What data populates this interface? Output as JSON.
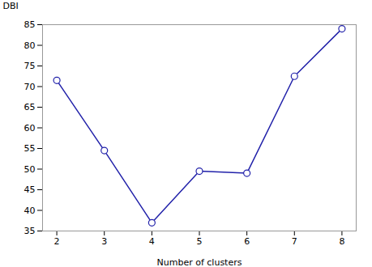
{
  "chart_data": {
    "type": "line",
    "x": [
      2,
      3,
      4,
      5,
      6,
      7,
      8
    ],
    "values": [
      71.5,
      54.5,
      37.0,
      49.5,
      49.0,
      72.5,
      84.0
    ],
    "xlabel": "Number of clusters",
    "ylabel": "DBI",
    "xlim": [
      1.7,
      8.3
    ],
    "ylim": [
      35,
      85
    ],
    "xticks": [
      2,
      3,
      4,
      5,
      6,
      7,
      8
    ],
    "yticks": [
      35,
      40,
      45,
      50,
      55,
      60,
      65,
      70,
      75,
      80,
      85
    ],
    "color": "#2222AA",
    "marker": "circle"
  }
}
